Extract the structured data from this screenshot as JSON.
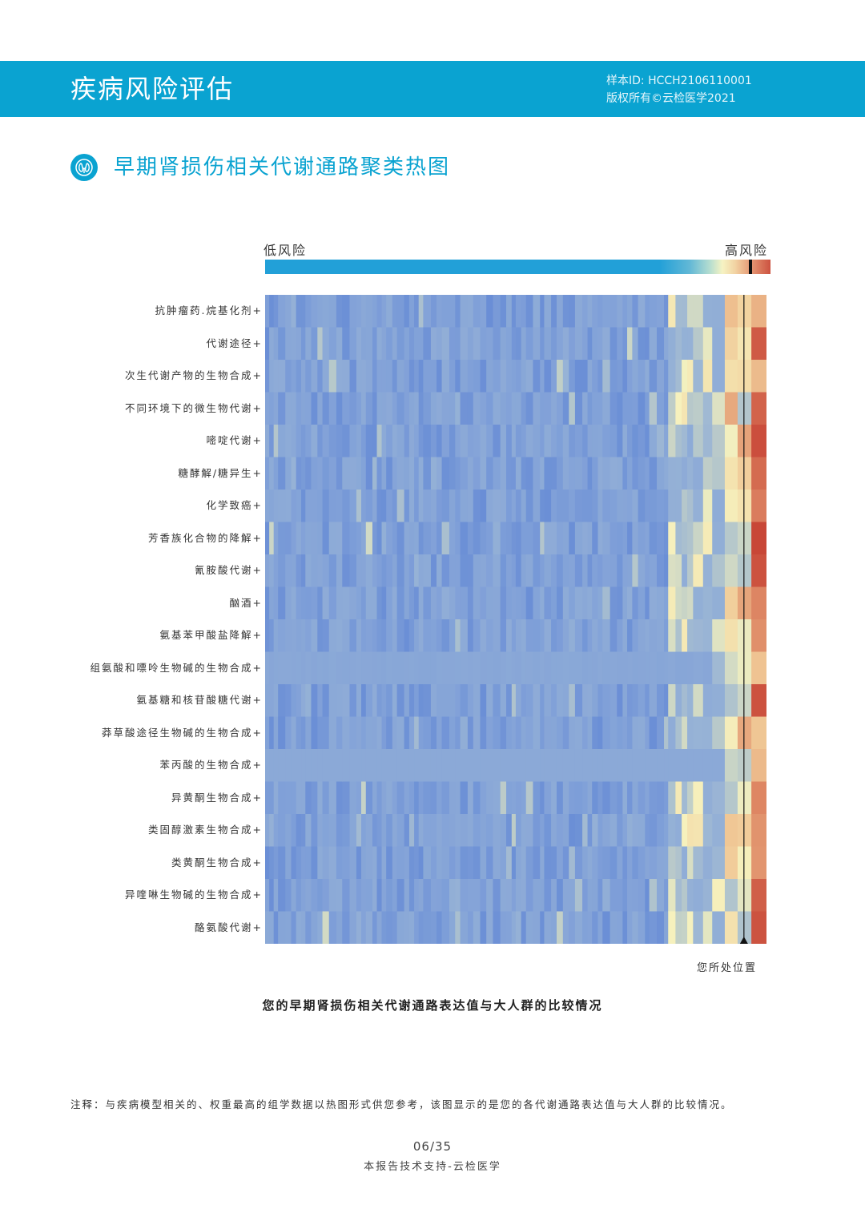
{
  "header": {
    "title": "疾病风险评估",
    "sample_id": "样本ID: HCCH2106110001",
    "copyright": "版权所有©云检医学2021"
  },
  "section": {
    "title": "早期肾损伤相关代谢通路聚类热图",
    "icon": "kidney-icon"
  },
  "legend": {
    "low_label": "低风险",
    "high_label": "高风险",
    "colors": [
      "#22a0d8",
      "#22a0d8",
      "#4aaed6",
      "#a8d8cf",
      "#f5f2bf",
      "#f3c894",
      "#e0866a",
      "#c94a3c"
    ]
  },
  "chart_data": {
    "type": "heatmap",
    "rows": [
      "抗肿瘤药.烷基化剂",
      "代谢途径",
      "次生代谢产物的生物合成",
      "不同环境下的微生物代谢",
      "嘧啶代谢",
      "糖酵解/糖异生",
      "化学致癌",
      "芳香族化合物的降解",
      "氰胺酸代谢",
      "酗酒",
      "氨基苯甲酸盐降解",
      "组氨酸和嘌呤生物碱的生物合成",
      "氨基糖和核苷酸糖代谢",
      "莽草酸途径生物碱的生物合成",
      "苯丙酸的生物合成",
      "异黄酮生物合成",
      "类固醇激素生物合成",
      "类黄酮生物合成",
      "异喹啉生物碱的生物合成",
      "酪氨酸代谢"
    ],
    "row_suffix": "+",
    "column_count": 80,
    "your_position_fraction": 0.955,
    "your_position_label": "您所处位置",
    "scale": "low-to-high risk (blue → yellow → red)"
  },
  "caption": "您的早期肾损伤相关代谢通路表达值与大人群的比较情况",
  "footnote": "注释：与疾病模型相关的、权重最高的组学数据以热图形式供您参考，该图显示的是您的各代谢通路表达值与大人群的比较情况。",
  "footer": {
    "page": "06/35",
    "text": "本报告技术支持-云检医学"
  }
}
